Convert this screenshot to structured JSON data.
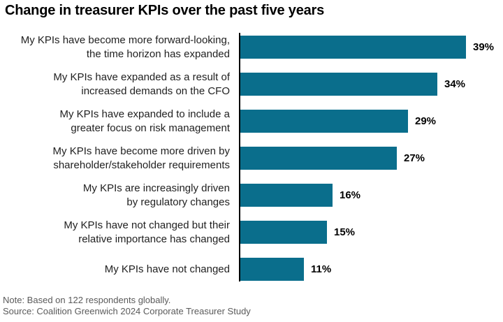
{
  "title": "Change in treasurer KPIs over the past five years",
  "footer": {
    "note": "Note: Based on 122 respondents globally.",
    "source": "Source: Coalition Greenwich 2024 Corporate Treasurer Study"
  },
  "colors": {
    "bar": "#0A6E8C",
    "axis": "#000000",
    "label": "#1F1F1F",
    "value": "#000000",
    "footer": "#5A5A5A",
    "background": "#FFFFFF"
  },
  "chart_data": {
    "type": "bar",
    "orientation": "horizontal",
    "title": "Change in treasurer KPIs over the past five years",
    "categories": [
      "My KPIs have become more forward-looking, the time horizon has expanded",
      "My KPIs have expanded as a result of increased demands on the CFO",
      "My KPIs have expanded to include a greater focus on risk management",
      "My KPIs have become more driven by shareholder/stakeholder requirements",
      "My KPIs are increasingly driven by regulatory changes",
      "My KPIs have not changed but their relative importance has changed",
      "My KPIs have not changed"
    ],
    "display_labels": [
      "My KPIs have become more forward-looking,\nthe time horizon has expanded",
      "My KPIs have expanded as a result of\nincreased demands on the CFO",
      "My KPIs have expanded to include a\ngreater focus on risk management",
      "My KPIs have become more driven by\nshareholder/stakeholder requirements",
      "My KPIs are increasingly driven\nby regulatory changes",
      "My KPIs have not changed but their\nrelative importance has changed",
      "My KPIs have not changed"
    ],
    "values": [
      39,
      34,
      29,
      27,
      16,
      15,
      11
    ],
    "value_labels": [
      "39%",
      "34%",
      "29%",
      "27%",
      "16%",
      "15%",
      "11%"
    ],
    "xlabel": "",
    "ylabel": "",
    "xlim": [
      0,
      44
    ],
    "grid": false,
    "legend": false,
    "note": "Note: Based on 122 respondents globally.",
    "source": "Source: Coalition Greenwich 2024 Corporate Treasurer Study"
  }
}
